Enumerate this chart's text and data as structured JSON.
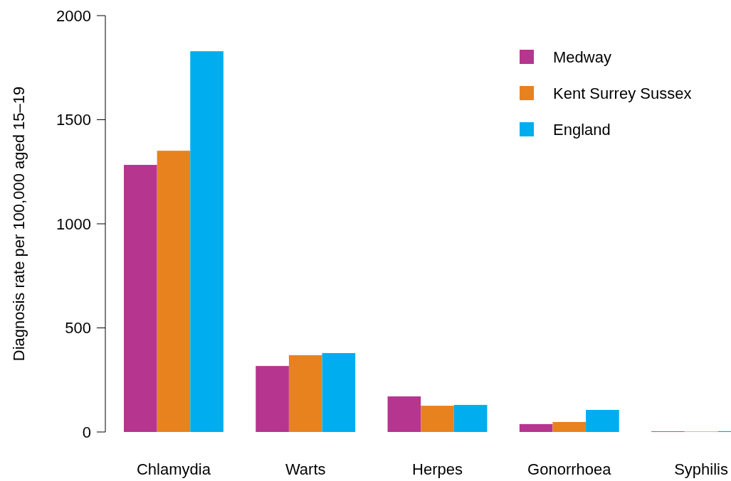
{
  "chart_data": {
    "type": "bar",
    "ylabel": "Diagnosis rate per 100,000 aged 15–19",
    "categories": [
      "Chlamydia",
      "Warts",
      "Herpes",
      "Gonorrhoea",
      "Syphilis"
    ],
    "series": [
      {
        "name": "Medway",
        "color": "#b5358f",
        "values": [
          1283,
          317,
          171,
          38,
          3
        ]
      },
      {
        "name": "Kent Surrey Sussex",
        "color": "#e8821e",
        "values": [
          1351,
          369,
          126,
          48,
          2
        ]
      },
      {
        "name": "England",
        "color": "#00adee",
        "values": [
          1829,
          379,
          130,
          106,
          4
        ]
      }
    ],
    "ylim": [
      0,
      2000
    ],
    "yticks": [
      0,
      500,
      1000,
      1500,
      2000
    ],
    "legend": "top right"
  }
}
